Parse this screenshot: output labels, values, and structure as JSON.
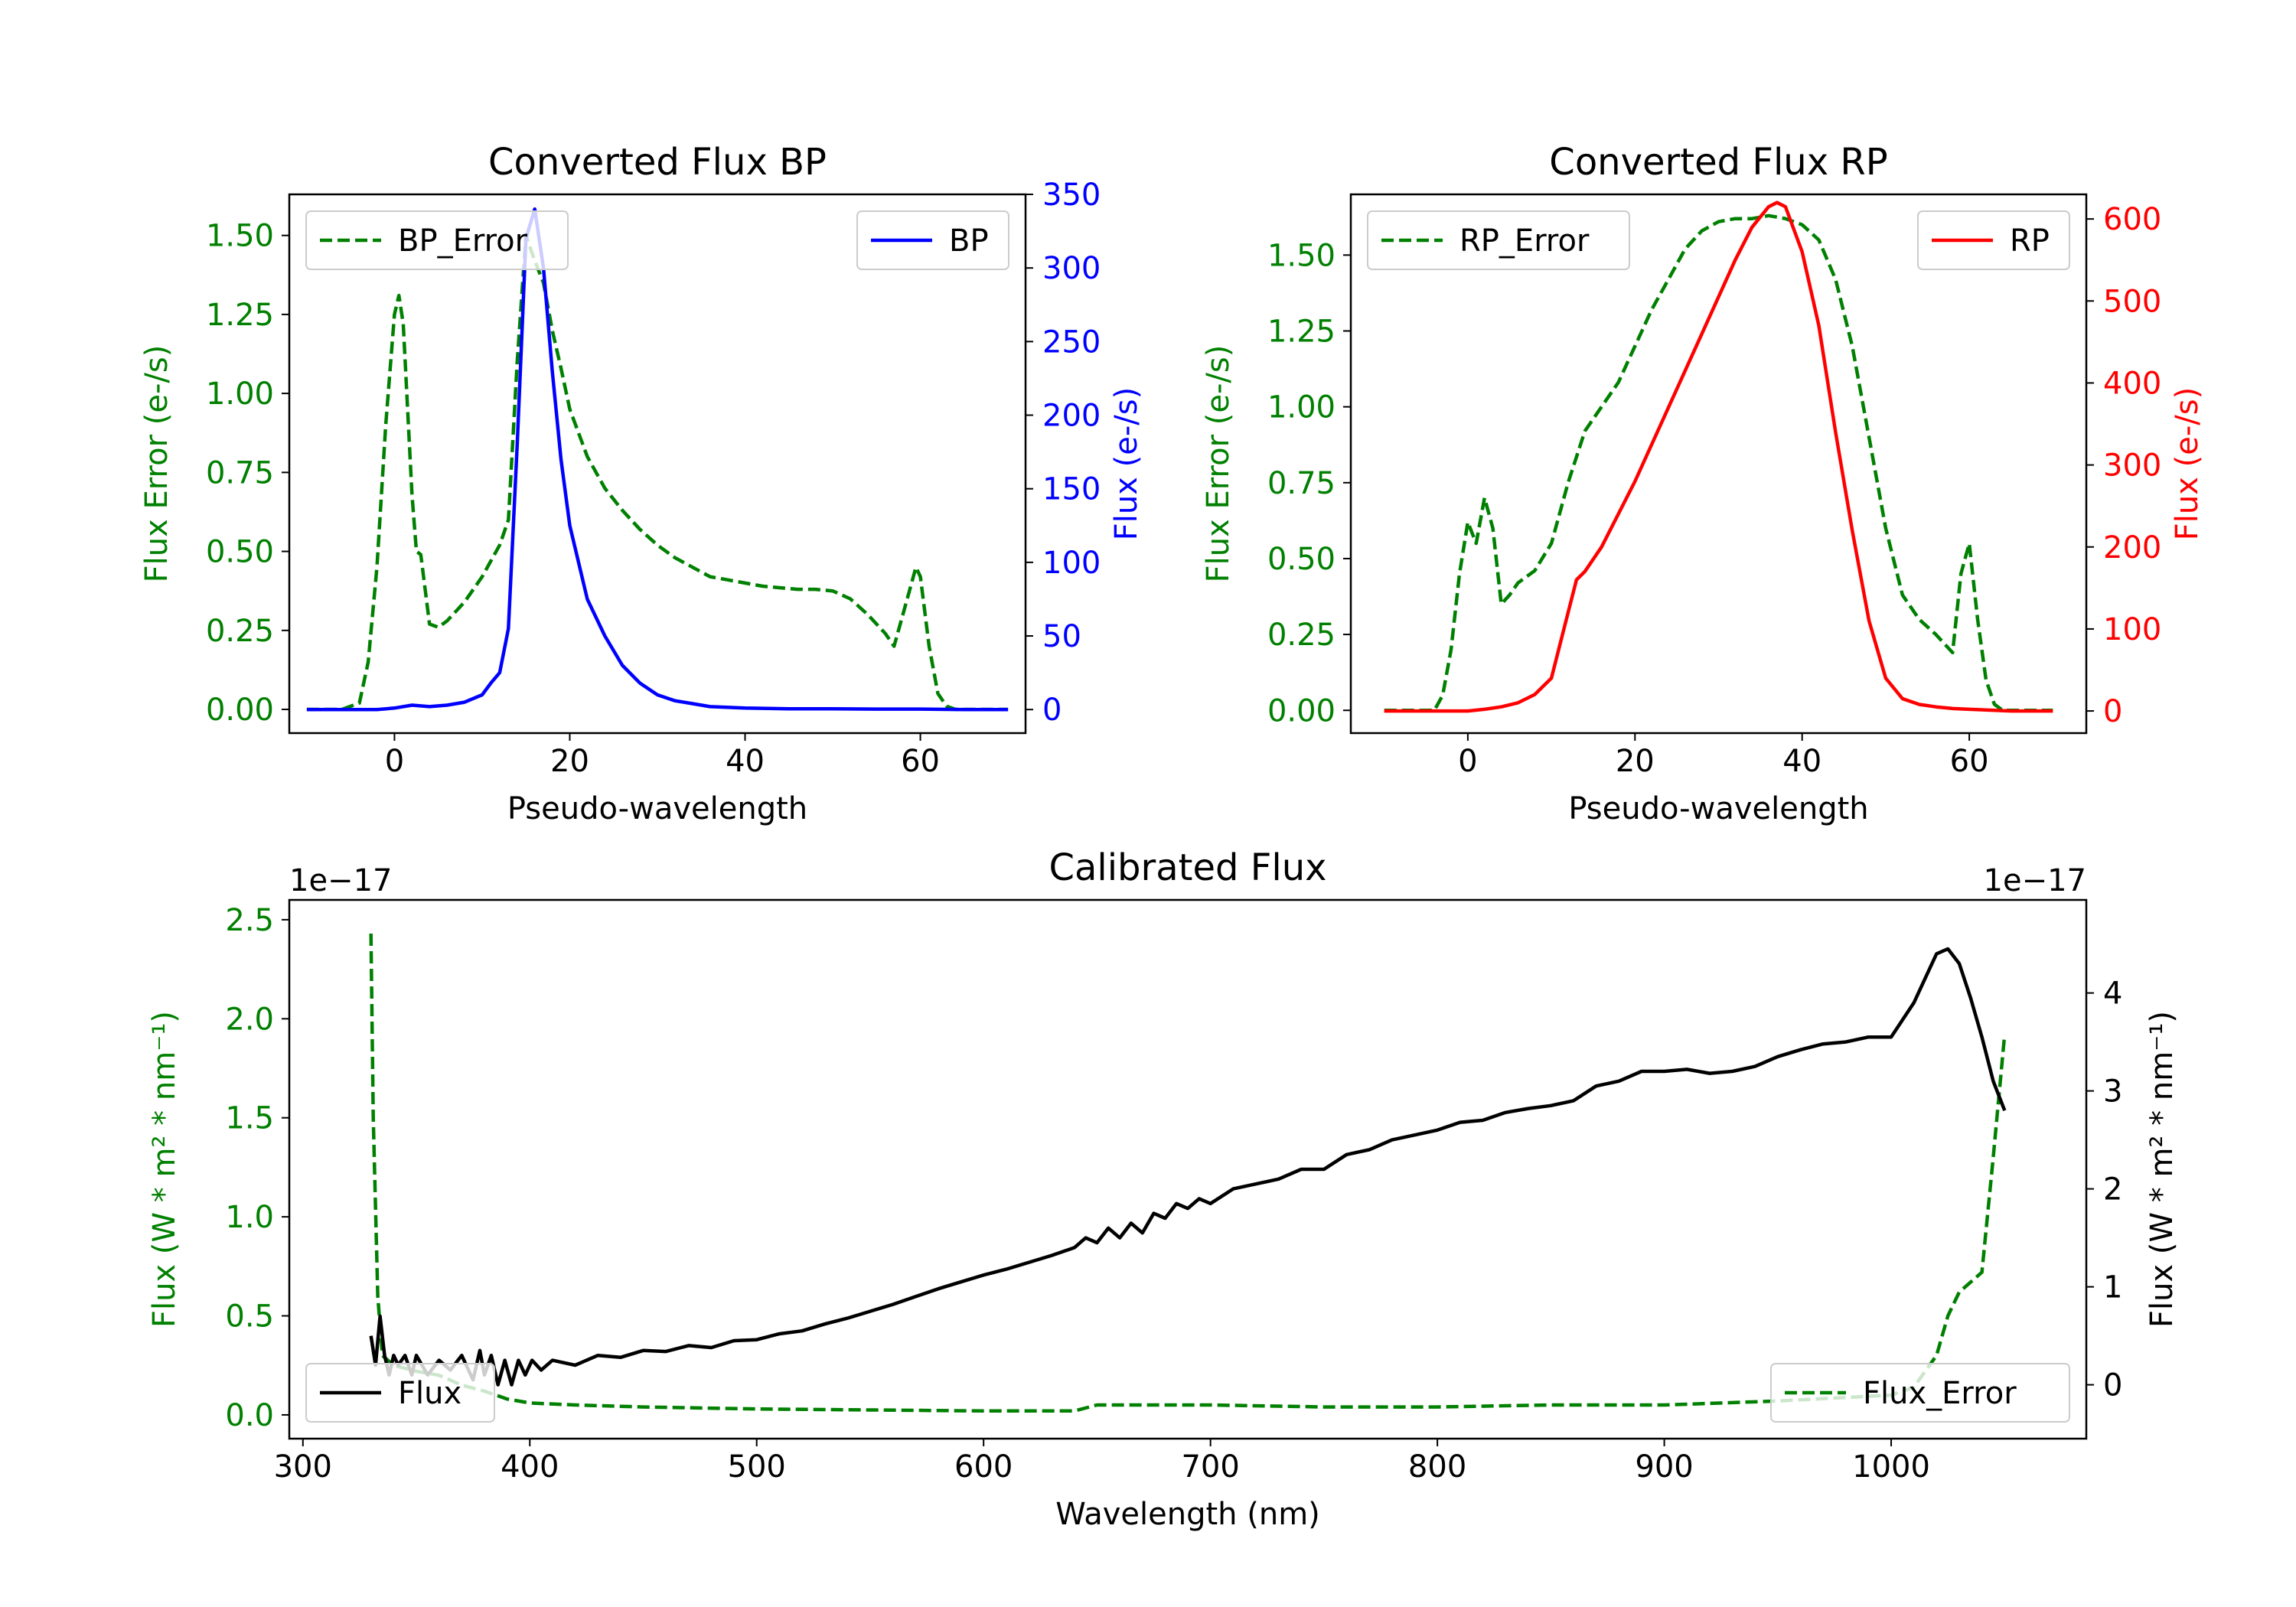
{
  "colors": {
    "green": "#008000",
    "blue": "#0000ff",
    "red": "#ff0000",
    "black": "#000000",
    "axis": "#000000",
    "legend_border": "#cccccc"
  },
  "chart_data": [
    {
      "id": "bp",
      "type": "line",
      "title": "Converted Flux BP",
      "xlabel": "Pseudo-wavelength",
      "ylabel_left": "Flux Error (e-/s)",
      "ylabel_right": "Flux (e-/s)",
      "xlim": [
        -12,
        72
      ],
      "ylim_left": [
        -0.075,
        1.63
      ],
      "ylim_right": [
        -16,
        350
      ],
      "xticks": [
        0,
        20,
        40,
        60
      ],
      "yticks_left": [
        0,
        0.25,
        0.5,
        0.75,
        1.0,
        1.25,
        1.5
      ],
      "ytick_labels_left": [
        "0.00",
        "0.25",
        "0.50",
        "0.75",
        "1.00",
        "1.25",
        "1.50"
      ],
      "yticks_right": [
        0,
        50,
        100,
        150,
        200,
        250,
        300,
        350
      ],
      "ytick_labels_right": [
        "0",
        "50",
        "100",
        "150",
        "200",
        "250",
        "300",
        "350"
      ],
      "left_axis_color": "green",
      "right_axis_color": "blue",
      "legend_left": "BP_Error",
      "legend_right": "BP",
      "series": [
        {
          "name": "BP_Error",
          "axis": "left",
          "color": "green",
          "dashed": true,
          "x": [
            -10,
            -6,
            -4,
            -3,
            -2,
            -1,
            0,
            0.5,
            1,
            1.5,
            2,
            2.5,
            3,
            4,
            5,
            6,
            7,
            8,
            9,
            10,
            11,
            12,
            13,
            14,
            15,
            16,
            17,
            18,
            19,
            20,
            22,
            24,
            26,
            28,
            30,
            32,
            34,
            36,
            38,
            40,
            42,
            44,
            46,
            48,
            50,
            52,
            54,
            55,
            56,
            57,
            58,
            59,
            59.5,
            60,
            61,
            62,
            63,
            64,
            65,
            70
          ],
          "y": [
            0,
            0,
            0.02,
            0.15,
            0.45,
            0.9,
            1.25,
            1.31,
            1.22,
            0.95,
            0.68,
            0.5,
            0.49,
            0.27,
            0.26,
            0.28,
            0.31,
            0.34,
            0.38,
            0.42,
            0.47,
            0.52,
            0.6,
            1.1,
            1.5,
            1.42,
            1.35,
            1.2,
            1.08,
            0.95,
            0.8,
            0.7,
            0.63,
            0.57,
            0.52,
            0.48,
            0.45,
            0.42,
            0.41,
            0.4,
            0.39,
            0.385,
            0.38,
            0.38,
            0.375,
            0.35,
            0.3,
            0.27,
            0.24,
            0.2,
            0.3,
            0.4,
            0.45,
            0.42,
            0.2,
            0.05,
            0.01,
            0,
            0,
            0
          ]
        },
        {
          "name": "BP",
          "axis": "right",
          "color": "blue",
          "dashed": false,
          "x": [
            -10,
            -5,
            -2,
            0,
            2,
            4,
            6,
            8,
            10,
            11,
            12,
            13,
            14,
            15,
            16,
            17,
            18,
            19,
            20,
            22,
            24,
            26,
            28,
            30,
            32,
            34,
            36,
            40,
            45,
            50,
            55,
            60,
            65,
            70
          ],
          "y": [
            0,
            0,
            0,
            1,
            3,
            2,
            3,
            5,
            10,
            18,
            25,
            55,
            180,
            320,
            340,
            300,
            230,
            170,
            125,
            75,
            50,
            30,
            18,
            10,
            6,
            4,
            2,
            1,
            0.5,
            0.5,
            0.3,
            0.3,
            0,
            0
          ]
        }
      ]
    },
    {
      "id": "rp",
      "type": "line",
      "title": "Converted Flux RP",
      "xlabel": "Pseudo-wavelength",
      "ylabel_left": "Flux Error (e-/s)",
      "ylabel_right": "Flux (e-/s)",
      "xlim": [
        -14,
        74
      ],
      "ylim_left": [
        -0.075,
        1.7
      ],
      "ylim_right": [
        -27,
        630
      ],
      "xticks": [
        0,
        20,
        40,
        60
      ],
      "yticks_left": [
        0,
        0.25,
        0.5,
        0.75,
        1.0,
        1.25,
        1.5
      ],
      "ytick_labels_left": [
        "0.00",
        "0.25",
        "0.50",
        "0.75",
        "1.00",
        "1.25",
        "1.50"
      ],
      "yticks_right": [
        0,
        100,
        200,
        300,
        400,
        500,
        600
      ],
      "ytick_labels_right": [
        "0",
        "100",
        "200",
        "300",
        "400",
        "500",
        "600"
      ],
      "left_axis_color": "green",
      "right_axis_color": "red",
      "legend_left": "RP_Error",
      "legend_right": "RP",
      "series": [
        {
          "name": "RP_Error",
          "axis": "left",
          "color": "green",
          "dashed": true,
          "x": [
            -10,
            -4,
            -3,
            -2,
            -1,
            0,
            1,
            2,
            3,
            4,
            5,
            6,
            8,
            10,
            12,
            14,
            16,
            18,
            20,
            22,
            24,
            26,
            28,
            30,
            32,
            34,
            36,
            38,
            40,
            42,
            44,
            46,
            48,
            50,
            52,
            54,
            56,
            57,
            58,
            59,
            60,
            61,
            62,
            63,
            64,
            65,
            70
          ],
          "y": [
            0,
            0,
            0.05,
            0.2,
            0.45,
            0.62,
            0.55,
            0.7,
            0.6,
            0.35,
            0.38,
            0.42,
            0.46,
            0.55,
            0.75,
            0.92,
            1.0,
            1.08,
            1.2,
            1.32,
            1.42,
            1.52,
            1.58,
            1.61,
            1.62,
            1.62,
            1.63,
            1.62,
            1.6,
            1.55,
            1.42,
            1.2,
            0.9,
            0.6,
            0.38,
            0.3,
            0.25,
            0.22,
            0.19,
            0.45,
            0.55,
            0.3,
            0.1,
            0.02,
            0,
            0,
            0
          ]
        },
        {
          "name": "RP",
          "axis": "right",
          "color": "red",
          "dashed": false,
          "x": [
            -10,
            -5,
            0,
            2,
            4,
            6,
            8,
            10,
            11,
            12,
            13,
            14,
            16,
            18,
            20,
            24,
            28,
            32,
            34,
            36,
            37,
            38,
            40,
            42,
            44,
            46,
            48,
            50,
            52,
            54,
            56,
            58,
            60,
            65,
            70
          ],
          "y": [
            0,
            0,
            0,
            2,
            5,
            10,
            20,
            40,
            80,
            120,
            160,
            170,
            200,
            240,
            280,
            370,
            460,
            550,
            590,
            615,
            620,
            615,
            560,
            470,
            340,
            220,
            110,
            40,
            15,
            8,
            5,
            3,
            2,
            0,
            0
          ]
        }
      ]
    },
    {
      "id": "calibrated",
      "type": "line",
      "title": "Calibrated Flux",
      "xlabel": "Wavelength (nm)",
      "ylabel_left": "Flux (W * m² * nm⁻¹)",
      "ylabel_right": "Flux (W * m² * nm⁻¹)",
      "offset_left": "1e−17",
      "offset_right": "1e−17",
      "xlim": [
        294,
        1086
      ],
      "ylim_left": [
        -0.12,
        2.6
      ],
      "ylim_right": [
        -0.55,
        4.95
      ],
      "xticks": [
        300,
        400,
        500,
        600,
        700,
        800,
        900,
        1000
      ],
      "yticks_left": [
        0,
        0.5,
        1.0,
        1.5,
        2.0,
        2.5
      ],
      "ytick_labels_left": [
        "0.0",
        "0.5",
        "1.0",
        "1.5",
        "2.0",
        "2.5"
      ],
      "yticks_right": [
        0,
        1,
        2,
        3,
        4
      ],
      "ytick_labels_right": [
        "0",
        "1",
        "2",
        "3",
        "4"
      ],
      "left_axis_color": "green",
      "right_axis_color": "black",
      "legend_left": "Flux",
      "legend_right": "Flux_Error",
      "series": [
        {
          "name": "Flux_Error",
          "axis": "left",
          "color": "green",
          "dashed": true,
          "x": [
            330,
            331,
            333,
            335,
            340,
            350,
            360,
            370,
            380,
            390,
            400,
            420,
            450,
            500,
            550,
            600,
            640,
            650,
            700,
            750,
            800,
            850,
            900,
            950,
            1000,
            1010,
            1020,
            1025,
            1030,
            1040,
            1045,
            1050
          ],
          "y": [
            2.43,
            1.5,
            0.6,
            0.3,
            0.25,
            0.22,
            0.2,
            0.15,
            0.12,
            0.08,
            0.06,
            0.05,
            0.04,
            0.03,
            0.025,
            0.02,
            0.02,
            0.05,
            0.05,
            0.04,
            0.04,
            0.05,
            0.05,
            0.07,
            0.1,
            0.14,
            0.3,
            0.5,
            0.62,
            0.72,
            1.3,
            1.92
          ]
        },
        {
          "name": "Flux",
          "axis": "right",
          "color": "black",
          "dashed": false,
          "x": [
            330,
            332,
            334,
            336,
            338,
            340,
            342,
            345,
            348,
            350,
            355,
            360,
            365,
            370,
            375,
            378,
            380,
            383,
            386,
            389,
            392,
            395,
            398,
            401,
            405,
            410,
            420,
            430,
            440,
            450,
            460,
            470,
            480,
            490,
            500,
            510,
            520,
            530,
            540,
            550,
            560,
            570,
            580,
            590,
            600,
            610,
            620,
            630,
            640,
            645,
            650,
            655,
            660,
            665,
            670,
            675,
            680,
            685,
            690,
            695,
            700,
            710,
            720,
            730,
            740,
            750,
            760,
            770,
            780,
            790,
            800,
            810,
            820,
            830,
            840,
            850,
            860,
            870,
            880,
            890,
            900,
            910,
            920,
            930,
            940,
            950,
            960,
            970,
            980,
            990,
            1000,
            1010,
            1020,
            1025,
            1030,
            1035,
            1040,
            1045,
            1050
          ],
          "y": [
            0.5,
            0.2,
            0.7,
            0.3,
            0.1,
            0.3,
            0.2,
            0.3,
            0.1,
            0.3,
            0.1,
            0.25,
            0.15,
            0.3,
            0.05,
            0.35,
            0.1,
            0.3,
            0.0,
            0.25,
            0.0,
            0.25,
            0.1,
            0.25,
            0.15,
            0.25,
            0.2,
            0.3,
            0.28,
            0.35,
            0.34,
            0.4,
            0.38,
            0.45,
            0.46,
            0.52,
            0.55,
            0.62,
            0.68,
            0.75,
            0.82,
            0.9,
            0.98,
            1.05,
            1.12,
            1.18,
            1.25,
            1.32,
            1.4,
            1.5,
            1.45,
            1.6,
            1.5,
            1.65,
            1.55,
            1.75,
            1.7,
            1.85,
            1.8,
            1.9,
            1.85,
            2.0,
            2.05,
            2.1,
            2.2,
            2.2,
            2.35,
            2.4,
            2.5,
            2.55,
            2.6,
            2.68,
            2.7,
            2.78,
            2.82,
            2.85,
            2.9,
            3.05,
            3.1,
            3.2,
            3.2,
            3.22,
            3.18,
            3.2,
            3.25,
            3.35,
            3.42,
            3.48,
            3.5,
            3.55,
            3.55,
            3.9,
            4.4,
            4.45,
            4.3,
            3.95,
            3.55,
            3.1,
            2.8
          ]
        }
      ]
    }
  ]
}
